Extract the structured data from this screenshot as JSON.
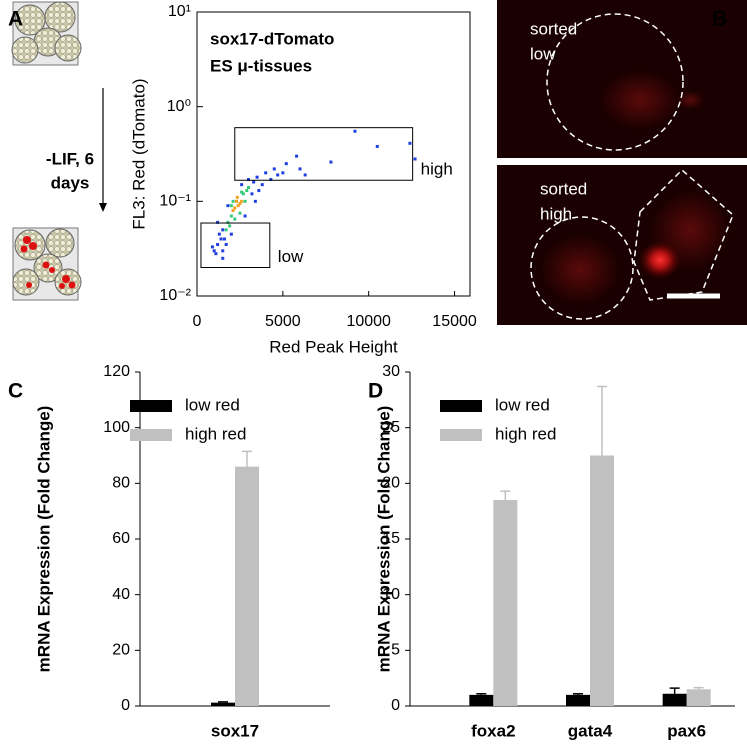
{
  "panel_labels": [
    "A",
    "B",
    "C",
    "D"
  ],
  "schematic_label": [
    "-LIF,  6",
    "days"
  ],
  "image_labels": [
    [
      "sorted",
      "low"
    ],
    [
      "sorted",
      "high"
    ]
  ],
  "chart_data": [
    {
      "type": "scatter",
      "title": "sox17-dTomato",
      "subtitle": "ES μ-tissues",
      "x_label": "Red Peak Height",
      "y_label": "FL3: Red (dTomato)",
      "xlim": [
        0,
        15900
      ],
      "xticks": [
        0,
        5000,
        10000,
        15000
      ],
      "ylim": [
        0.01,
        10
      ],
      "yscale": "log",
      "yticks": [
        {
          "value": 0.01,
          "label": "10⁻²"
        },
        {
          "value": 0.1,
          "label": "10⁻¹"
        },
        {
          "value": 1,
          "label": "10⁰"
        },
        {
          "value": 10,
          "label": "10¹"
        }
      ],
      "series": [
        {
          "color": "#1f3fe0",
          "x": [
            1000,
            1200,
            1400,
            1500,
            1300,
            1600,
            1100,
            900,
            1700,
            1500,
            2000,
            3300,
            3500,
            3800,
            4000,
            4300,
            3200,
            3600,
            4500,
            5000,
            5200,
            4700,
            5800,
            6000,
            2600,
            3000,
            1800,
            1200,
            3400,
            2800,
            1500,
            7800,
            9200,
            10500,
            12400,
            12700,
            6300
          ],
          "values": [
            0.03,
            0.035,
            0.04,
            0.03,
            0.045,
            0.04,
            0.028,
            0.033,
            0.035,
            0.05,
            0.045,
            0.16,
            0.18,
            0.15,
            0.2,
            0.17,
            0.12,
            0.13,
            0.22,
            0.2,
            0.25,
            0.19,
            0.3,
            0.22,
            0.15,
            0.17,
            0.09,
            0.06,
            0.1,
            0.07,
            0.025,
            0.26,
            0.55,
            0.38,
            0.41,
            0.28,
            0.19
          ]
        },
        {
          "color": "#34c97a",
          "x": [
            1800,
            2000,
            2700,
            2900,
            1900,
            2200,
            2800,
            1700,
            2500,
            3000,
            2100,
            2600,
            2000
          ],
          "values": [
            0.06,
            0.07,
            0.12,
            0.13,
            0.055,
            0.065,
            0.1,
            0.05,
            0.075,
            0.14,
            0.1,
            0.125,
            0.09
          ]
        },
        {
          "color": "#f0a020",
          "x": [
            2200,
            2400,
            2300,
            2500,
            2100,
            2600,
            2350
          ],
          "values": [
            0.085,
            0.09,
            0.1,
            0.095,
            0.08,
            0.1,
            0.11
          ]
        }
      ],
      "gates": [
        {
          "label": "low",
          "x": [
            230,
            4240
          ],
          "y": [
            0.02,
            0.059
          ]
        },
        {
          "label": "high",
          "x": [
            2200,
            12560
          ],
          "y": [
            0.167,
            0.6
          ]
        }
      ]
    },
    {
      "type": "bar",
      "y_label": "mRNA Expression (Fold Change)",
      "categories": [
        "sox17"
      ],
      "ylim": [
        0,
        120
      ],
      "yticks": [
        0,
        20,
        40,
        60,
        80,
        100,
        120
      ],
      "legend": "upper left",
      "series": [
        {
          "name": "low red",
          "color": "#000000",
          "values": [
            1.2
          ],
          "errors": [
            0.3
          ]
        },
        {
          "name": "high red",
          "color": "#c0c0c0",
          "values": [
            86
          ],
          "errors": [
            5.5
          ]
        }
      ]
    },
    {
      "type": "bar",
      "y_label": "mRNA Expression (Fold Change)",
      "categories": [
        "foxa2",
        "gata4",
        "pax6"
      ],
      "ylim": [
        0,
        30
      ],
      "yticks": [
        0,
        5,
        10,
        15,
        20,
        25,
        30
      ],
      "legend": "upper left",
      "series": [
        {
          "name": "low red",
          "color": "#000000",
          "values": [
            1.0,
            1.0,
            1.1
          ],
          "errors": [
            0.1,
            0.1,
            0.5
          ]
        },
        {
          "name": "high red",
          "color": "#c0c0c0",
          "values": [
            18.5,
            22.5,
            1.5
          ],
          "errors": [
            0.8,
            6.2,
            0.15
          ]
        }
      ]
    }
  ]
}
